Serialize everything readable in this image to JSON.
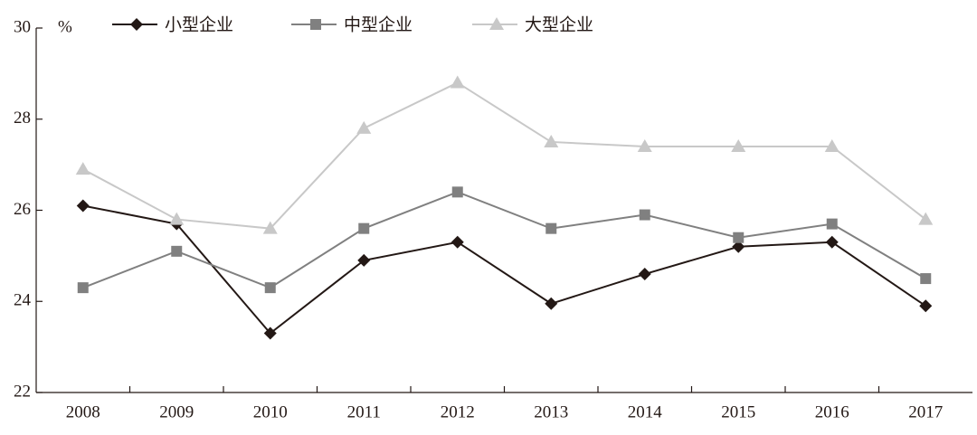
{
  "chart_data": {
    "type": "line",
    "y_unit": "%",
    "categories": [
      "2008",
      "2009",
      "2010",
      "2011",
      "2012",
      "2013",
      "2014",
      "2015",
      "2016",
      "2017"
    ],
    "series": [
      {
        "name": "小型企业",
        "color": "#231815",
        "marker": "diamond",
        "values": [
          26.1,
          25.7,
          23.3,
          24.9,
          25.3,
          23.95,
          24.6,
          25.2,
          25.3,
          23.9
        ]
      },
      {
        "name": "中型企业",
        "color": "#808080",
        "marker": "square",
        "values": [
          24.3,
          25.1,
          24.3,
          25.6,
          26.4,
          25.6,
          25.9,
          25.4,
          25.7,
          24.5
        ]
      },
      {
        "name": "大型企业",
        "color": "#c8c8c8",
        "marker": "triangle",
        "values": [
          26.9,
          25.8,
          25.6,
          27.8,
          28.8,
          27.5,
          27.4,
          27.4,
          27.4,
          25.8
        ]
      }
    ],
    "ylim": [
      22,
      30
    ],
    "yticks": [
      22,
      24,
      26,
      28,
      30
    ]
  }
}
